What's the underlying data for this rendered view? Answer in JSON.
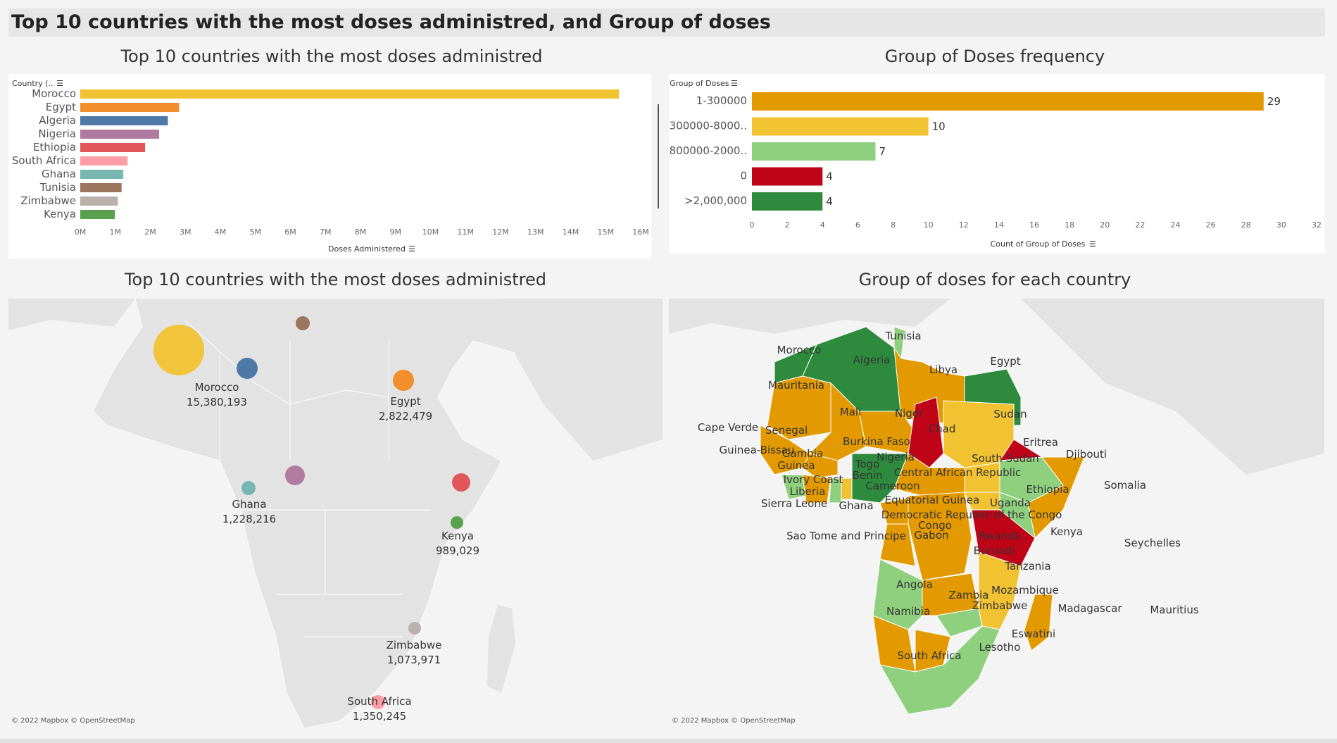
{
  "dashboard": {
    "title": "Top 10 countries with the most doses administred, and Group of doses"
  },
  "bar_panel": {
    "title": "Top 10 countries with the most doses administred",
    "row_header": "Country (..",
    "x_axis_title": "Doses Administered",
    "x_ticks": [
      "0M",
      "1M",
      "2M",
      "3M",
      "4M",
      "5M",
      "6M",
      "7M",
      "8M",
      "9M",
      "10M",
      "11M",
      "12M",
      "13M",
      "14M",
      "15M",
      "16M"
    ]
  },
  "group_panel": {
    "title": "Group of Doses frequency",
    "row_header": "Group of Doses",
    "x_axis_title": "Count of Group of Doses",
    "x_ticks": [
      "0",
      "2",
      "4",
      "6",
      "8",
      "10",
      "12",
      "14",
      "16",
      "18",
      "20",
      "22",
      "24",
      "26",
      "28",
      "30",
      "32"
    ]
  },
  "bubble_map": {
    "title": "Top 10 countries with the most doses administred",
    "credit": "© 2022 Mapbox © OpenStreetMap",
    "labels": [
      {
        "name": "Morocco",
        "value": "15,380,193"
      },
      {
        "name": "Egypt",
        "value": "2,822,479"
      },
      {
        "name": "Ghana",
        "value": "1,228,216"
      },
      {
        "name": "Kenya",
        "value": "989,029"
      },
      {
        "name": "Zimbabwe",
        "value": "1,073,971"
      },
      {
        "name": "South Africa",
        "value": "1,350,245"
      }
    ]
  },
  "choropleth": {
    "title": "Group of doses for each country",
    "credit": "© 2022 Mapbox © OpenStreetMap",
    "labels": [
      "Tunisia",
      "Morocco",
      "Algeria",
      "Libya",
      "Egypt",
      "Mauritania",
      "Mali",
      "Niger",
      "Chad",
      "Sudan",
      "Cape Verde",
      "Senegal",
      "Burkina Faso",
      "Eritrea",
      "Djibouti",
      "Guinea-Bissau",
      "Gambia",
      "Guinea",
      "Nigeria",
      "South Sudan",
      "Togo",
      "Ivory Coast",
      "Benin",
      "Central African Republic",
      "Somalia",
      "Liberia",
      "Cameroon",
      "Ethiopia",
      "Sierra Leone",
      "Ghana",
      "Equatorial Guinea",
      "Uganda",
      "Democratic Republic of the Congo",
      "Congo",
      "Kenya",
      "Sao Tome and Principe",
      "Gabon",
      "Rwanda",
      "Seychelles",
      "Burundi",
      "Tanzania",
      "Angola",
      "Mozambique",
      "Zambia",
      "Zimbabwe",
      "Madagascar",
      "Mauritius",
      "Namibia",
      "Eswatini",
      "Lesotho",
      "South Africa"
    ]
  },
  "colors": {
    "group_1_300000": "#e39a00",
    "group_300000_800000": "#f1c232",
    "group_800000_2000000": "#8fd07f",
    "group_0": "#c00418",
    "group_over_2000000": "#2e8b3e",
    "land": "#e3e3e3",
    "water": "#f4f4f4"
  },
  "chart_data": [
    {
      "type": "bar",
      "orientation": "horizontal",
      "title": "Top 10 countries with the most doses administred",
      "xlabel": "Doses Administered",
      "ylabel": "Country (..",
      "xlim": [
        0,
        16000000
      ],
      "categories": [
        "Morocco",
        "Egypt",
        "Algeria",
        "Nigeria",
        "Ethiopia",
        "South Africa",
        "Ghana",
        "Tunisia",
        "Zimbabwe",
        "Kenya"
      ],
      "values": [
        15380193,
        2822479,
        2500000,
        2250000,
        1850000,
        1350245,
        1228216,
        1180000,
        1073971,
        989029
      ],
      "colors": [
        "#f1c232",
        "#f28e2b",
        "#4e79a7",
        "#b07aa1",
        "#e15759",
        "#ff9da7",
        "#76b7b2",
        "#9c755f",
        "#bab0ac",
        "#59a14f"
      ]
    },
    {
      "type": "bar",
      "orientation": "horizontal",
      "title": "Group of Doses frequency",
      "xlabel": "Count of Group of Doses",
      "ylabel": "Group of Doses",
      "xlim": [
        0,
        32
      ],
      "categories": [
        "1-300000",
        "300000-8000..",
        "800000-2000..",
        "0",
        ">2,000,000"
      ],
      "values": [
        29,
        10,
        7,
        4,
        4
      ],
      "colors": [
        "#e39a00",
        "#f1c232",
        "#8fd07f",
        "#c00418",
        "#2e8b3e"
      ]
    }
  ]
}
